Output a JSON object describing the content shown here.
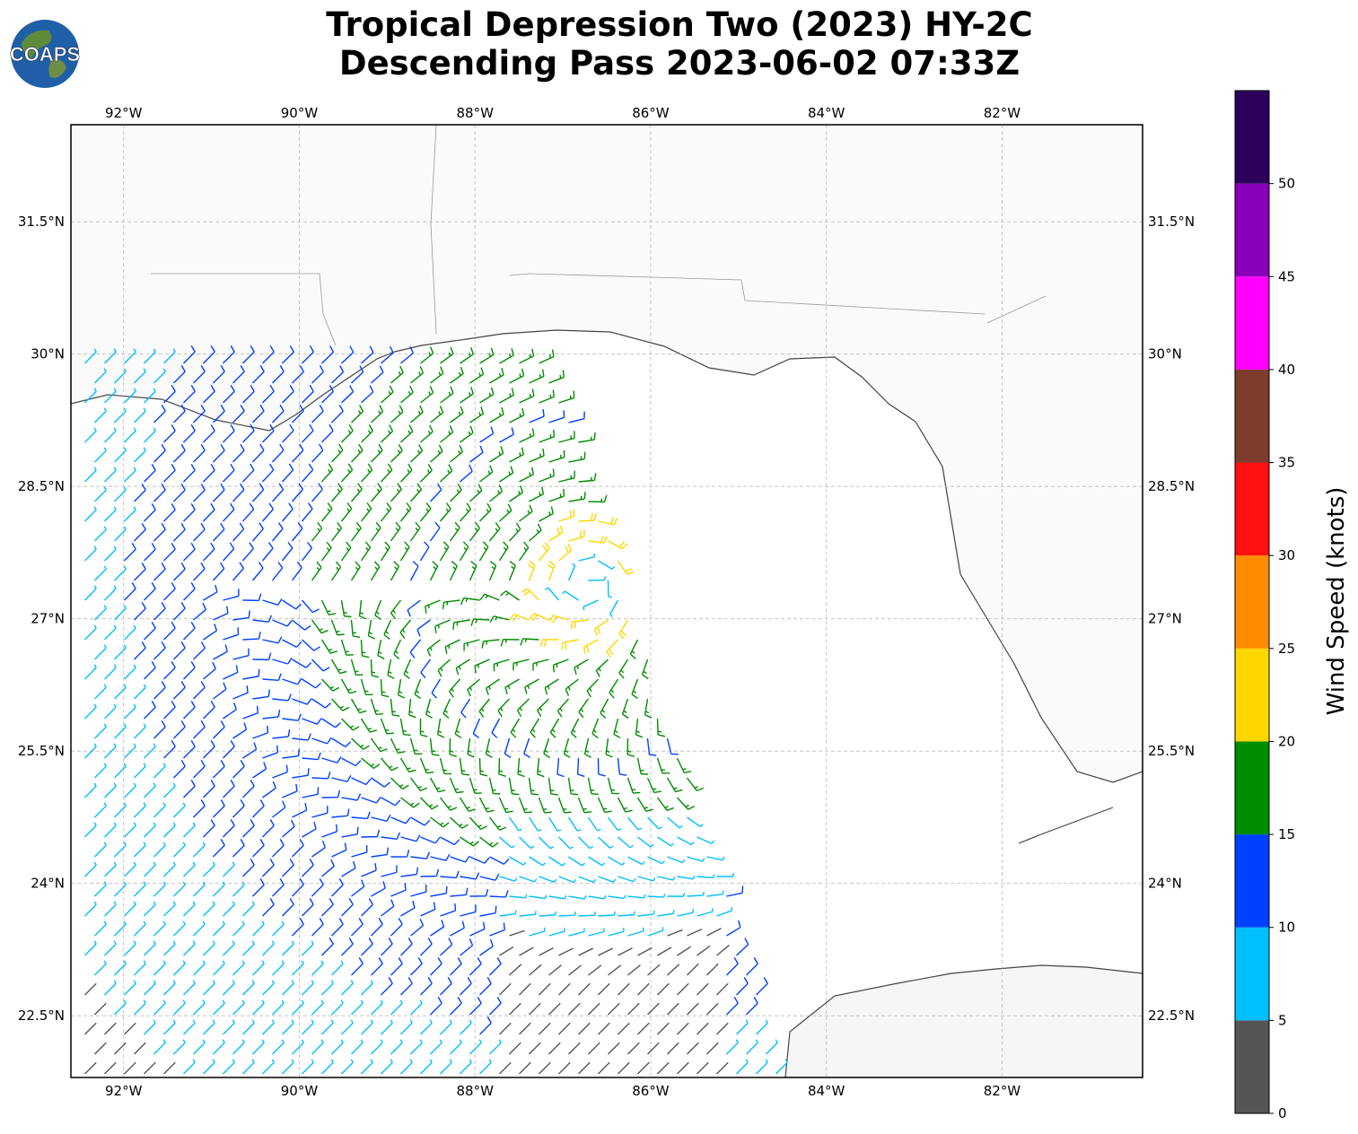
{
  "title": {
    "line1": "Tropical Depression Two (2023) HY-2C",
    "line2": "Descending Pass 2023-06-02 07:33Z"
  },
  "logo": {
    "text": "COAPS",
    "icon": "globe-logo-icon"
  },
  "map": {
    "lon_range": [
      -92.6,
      -80.4
    ],
    "lat_range": [
      21.8,
      32.6
    ],
    "lon_ticks": [
      "92°W",
      "90°W",
      "88°W",
      "86°W",
      "84°W",
      "82°W"
    ],
    "lat_ticks": [
      "31.5°N",
      "30°N",
      "28.5°N",
      "27°N",
      "25.5°N",
      "24°N",
      "22.5°N"
    ],
    "grid": true,
    "storm_center": {
      "lon": -86.7,
      "lat": 27.4
    }
  },
  "colorbar": {
    "label": "Wind Speed (knots)",
    "ticks": [
      "0",
      "5",
      "10",
      "15",
      "20",
      "25",
      "30",
      "35",
      "40",
      "45",
      "50"
    ],
    "colors": [
      "#555555",
      "#00bfff",
      "#0040ff",
      "#008c00",
      "#ffd700",
      "#ff8c00",
      "#ff1010",
      "#7d3c2c",
      "#ff00ff",
      "#8800bb",
      "#2c005c"
    ]
  }
}
